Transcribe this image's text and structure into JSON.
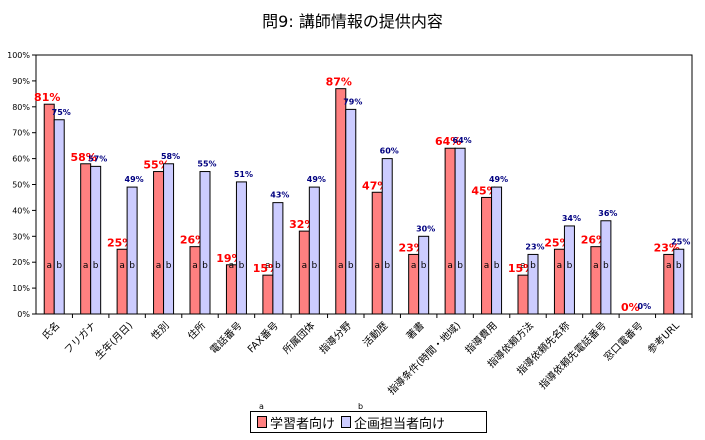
{
  "chart_data": {
    "type": "bar",
    "title": "問9: 講師情報の提供内容",
    "categories": [
      "氏名",
      "フリガナ",
      "生年(月日)",
      "性別",
      "住所",
      "電話番号",
      "FAX番号",
      "所属団体",
      "指導分野",
      "活動歴",
      "著書",
      "指導条件(時間・地域)",
      "指導費用",
      "指導依頼方法",
      "指導依頼先名称",
      "指導依頼先電話番号",
      "窓口電番号",
      "参考URL"
    ],
    "series": [
      {
        "name": "学習者向け",
        "marker": "a",
        "color": "#ff8080",
        "values": [
          81,
          58,
          25,
          55,
          26,
          19,
          15,
          32,
          87,
          47,
          23,
          64,
          45,
          15,
          25,
          26,
          0,
          23
        ],
        "labels": [
          "81%",
          "58%",
          "25%",
          "55%",
          "26%",
          "19%",
          "15%",
          "32%",
          "87%",
          "47%",
          "23%",
          "64%",
          "45%",
          "15%",
          "25%",
          "26%",
          "0%",
          "23%"
        ]
      },
      {
        "name": "企画担当者向け",
        "marker": "b",
        "color": "#ccccff",
        "values": [
          75,
          57,
          49,
          58,
          55,
          51,
          43,
          49,
          79,
          60,
          30,
          64,
          49,
          23,
          34,
          36,
          0,
          25
        ],
        "labels": [
          "75%",
          "57%",
          "49%",
          "58%",
          "55%",
          "51%",
          "43%",
          "49%",
          "79%",
          "60%",
          "30%",
          "64%",
          "49%",
          "23%",
          "34%",
          "36%",
          "0%",
          "25%"
        ]
      }
    ],
    "y_ticks": [
      "0%",
      "10%",
      "20%",
      "30%",
      "40%",
      "50%",
      "60%",
      "70%",
      "80%",
      "90%",
      "100%"
    ],
    "ylim": [
      0,
      100
    ],
    "grid": false,
    "legend_position": "bottom-center"
  }
}
